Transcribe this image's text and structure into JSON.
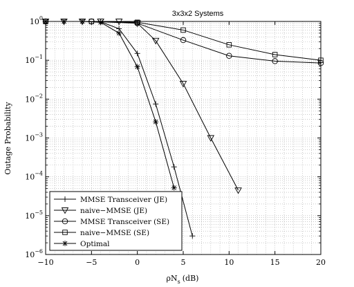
{
  "chart_data": {
    "type": "line",
    "title": "3x3x2 Systems",
    "xlabel_main": "ρN",
    "xlabel_sub": "s",
    "xlabel_unit": "(dB)",
    "ylabel": "Outage Probability",
    "x_scale": "linear",
    "y_scale": "log",
    "xlim": [
      -10,
      20
    ],
    "ylim": [
      1e-06,
      1
    ],
    "x_ticks": [
      -10,
      -5,
      0,
      5,
      10,
      15,
      20
    ],
    "y_ticks": [
      {
        "value": 1,
        "base": "10",
        "exp": "0"
      },
      {
        "value": 0.1,
        "base": "10",
        "exp": "−1"
      },
      {
        "value": 0.01,
        "base": "10",
        "exp": "−2"
      },
      {
        "value": 0.001,
        "base": "10",
        "exp": "−3"
      },
      {
        "value": 0.0001,
        "base": "10",
        "exp": "−4"
      },
      {
        "value": 1e-05,
        "base": "10",
        "exp": "−5"
      },
      {
        "value": 1e-06,
        "base": "10",
        "exp": "−6"
      }
    ],
    "grid": true,
    "legend_position": "bottom-left",
    "series": [
      {
        "name": "MMSE Transceiver (JE)",
        "marker": "plus",
        "x": [
          -10,
          -8,
          -6,
          -4,
          -2,
          0,
          2,
          4,
          6
        ],
        "y": [
          1,
          1,
          1,
          0.98,
          0.65,
          0.15,
          0.0075,
          0.00018,
          3e-06
        ]
      },
      {
        "name": "naive−MMSE (JE)",
        "marker": "triangle-down",
        "x": [
          -10,
          -8,
          -6,
          -4,
          -2,
          0,
          2,
          5,
          8,
          11
        ],
        "y": [
          1,
          1,
          1,
          1,
          1,
          0.9,
          0.32,
          0.025,
          0.001,
          4.5e-05
        ]
      },
      {
        "name": "MMSE Transceiver (SE)",
        "marker": "circle",
        "x": [
          -10,
          -5,
          0,
          5,
          10,
          15,
          20
        ],
        "y": [
          1,
          1,
          0.9,
          0.33,
          0.13,
          0.095,
          0.085
        ]
      },
      {
        "name": "naive−MMSE (SE)",
        "marker": "square",
        "x": [
          -10,
          -5,
          0,
          5,
          10,
          15,
          20
        ],
        "y": [
          1,
          1,
          0.95,
          0.6,
          0.25,
          0.14,
          0.1
        ]
      },
      {
        "name": "Optimal",
        "marker": "asterisk",
        "x": [
          -10,
          -8,
          -6,
          -4,
          -2,
          0,
          2,
          4
        ],
        "y": [
          1,
          1,
          1,
          0.95,
          0.5,
          0.068,
          0.0026,
          5.2e-05
        ]
      }
    ]
  }
}
